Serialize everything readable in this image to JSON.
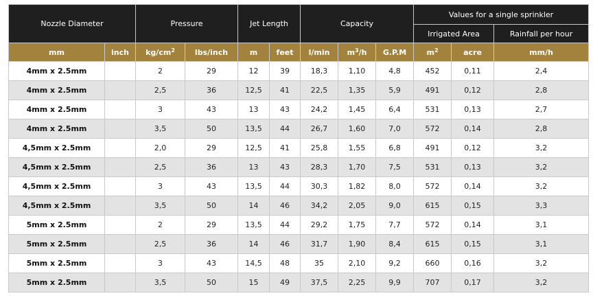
{
  "header": {
    "nozzle_diameter": "Nozzle Diameter",
    "pressure": "Pressure",
    "jet_length": "Jet Length",
    "capacity": "Capacity",
    "single_sprinkler": "Values for a single sprinkler",
    "irrigated_area": "Irrigated Area",
    "rainfall": "Rainfall per hour"
  },
  "units": {
    "mm": "mm",
    "inch": "inch",
    "kg_base": "kg/cm",
    "kg_exp": "2",
    "lbs": "lbs/inch",
    "m": "m",
    "feet": "feet",
    "lmin": "l/min",
    "m3_base": "m",
    "m3_exp": "3",
    "m3_tail": "/h",
    "gpm": "G.P.M",
    "m2_base": "m",
    "m2_exp": "2",
    "acre": "acre",
    "mmh": "mm/h"
  },
  "rows": [
    {
      "nozzle": "4mm x 2.5mm",
      "inch": "",
      "kg": "2",
      "lbs": "29",
      "m": "12",
      "feet": "39",
      "lmin": "18,3",
      "m3h": "1,10",
      "gpm": "4,8",
      "m2": "452",
      "acre": "0,11",
      "mmh": "2,4"
    },
    {
      "nozzle": "4mm x 2.5mm",
      "inch": "",
      "kg": "2,5",
      "lbs": "36",
      "m": "12,5",
      "feet": "41",
      "lmin": "22,5",
      "m3h": "1,35",
      "gpm": "5,9",
      "m2": "491",
      "acre": "0,12",
      "mmh": "2,8"
    },
    {
      "nozzle": "4mm x 2.5mm",
      "inch": "",
      "kg": "3",
      "lbs": "43",
      "m": "13",
      "feet": "43",
      "lmin": "24,2",
      "m3h": "1,45",
      "gpm": "6,4",
      "m2": "531",
      "acre": "0,13",
      "mmh": "2,7"
    },
    {
      "nozzle": "4mm x 2.5mm",
      "inch": "",
      "kg": "3,5",
      "lbs": "50",
      "m": "13,5",
      "feet": "44",
      "lmin": "26,7",
      "m3h": "1,60",
      "gpm": "7,0",
      "m2": "572",
      "acre": "0,14",
      "mmh": "2,8"
    },
    {
      "nozzle": "4,5mm x 2.5mm",
      "inch": "",
      "kg": "2,0",
      "lbs": "29",
      "m": "12,5",
      "feet": "41",
      "lmin": "25,8",
      "m3h": "1,55",
      "gpm": "6,8",
      "m2": "491",
      "acre": "0,12",
      "mmh": "3,2"
    },
    {
      "nozzle": "4,5mm x 2.5mm",
      "inch": "",
      "kg": "2,5",
      "lbs": "36",
      "m": "13",
      "feet": "43",
      "lmin": "28,3",
      "m3h": "1,70",
      "gpm": "7,5",
      "m2": "531",
      "acre": "0,13",
      "mmh": "3,2"
    },
    {
      "nozzle": "4,5mm x 2.5mm",
      "inch": "",
      "kg": "3",
      "lbs": "43",
      "m": "13,5",
      "feet": "44",
      "lmin": "30,3",
      "m3h": "1,82",
      "gpm": "8,0",
      "m2": "572",
      "acre": "0,14",
      "mmh": "3,2"
    },
    {
      "nozzle": "4,5mm x 2.5mm",
      "inch": "",
      "kg": "3,5",
      "lbs": "50",
      "m": "14",
      "feet": "46",
      "lmin": "34,2",
      "m3h": "2,05",
      "gpm": "9,0",
      "m2": "615",
      "acre": "0,15",
      "mmh": "3,3"
    },
    {
      "nozzle": "5mm x 2.5mm",
      "inch": "",
      "kg": "2",
      "lbs": "29",
      "m": "13,5",
      "feet": "44",
      "lmin": "29,2",
      "m3h": "1,75",
      "gpm": "7,7",
      "m2": "572",
      "acre": "0,14",
      "mmh": "3,1"
    },
    {
      "nozzle": "5mm x 2.5mm",
      "inch": "",
      "kg": "2,5",
      "lbs": "36",
      "m": "14",
      "feet": "46",
      "lmin": "31,7",
      "m3h": "1,90",
      "gpm": "8,4",
      "m2": "615",
      "acre": "0,15",
      "mmh": "3,1"
    },
    {
      "nozzle": "5mm x 2.5mm",
      "inch": "",
      "kg": "3",
      "lbs": "43",
      "m": "14,5",
      "feet": "48",
      "lmin": "35",
      "m3h": "2,10",
      "gpm": "9,2",
      "m2": "660",
      "acre": "0,16",
      "mmh": "3,2"
    },
    {
      "nozzle": "5mm x 2.5mm",
      "inch": "",
      "kg": "3,5",
      "lbs": "50",
      "m": "15",
      "feet": "49",
      "lmin": "37,5",
      "m3h": "2,25",
      "gpm": "9,9",
      "m2": "707",
      "acre": "0,17",
      "mmh": "3,2"
    }
  ]
}
